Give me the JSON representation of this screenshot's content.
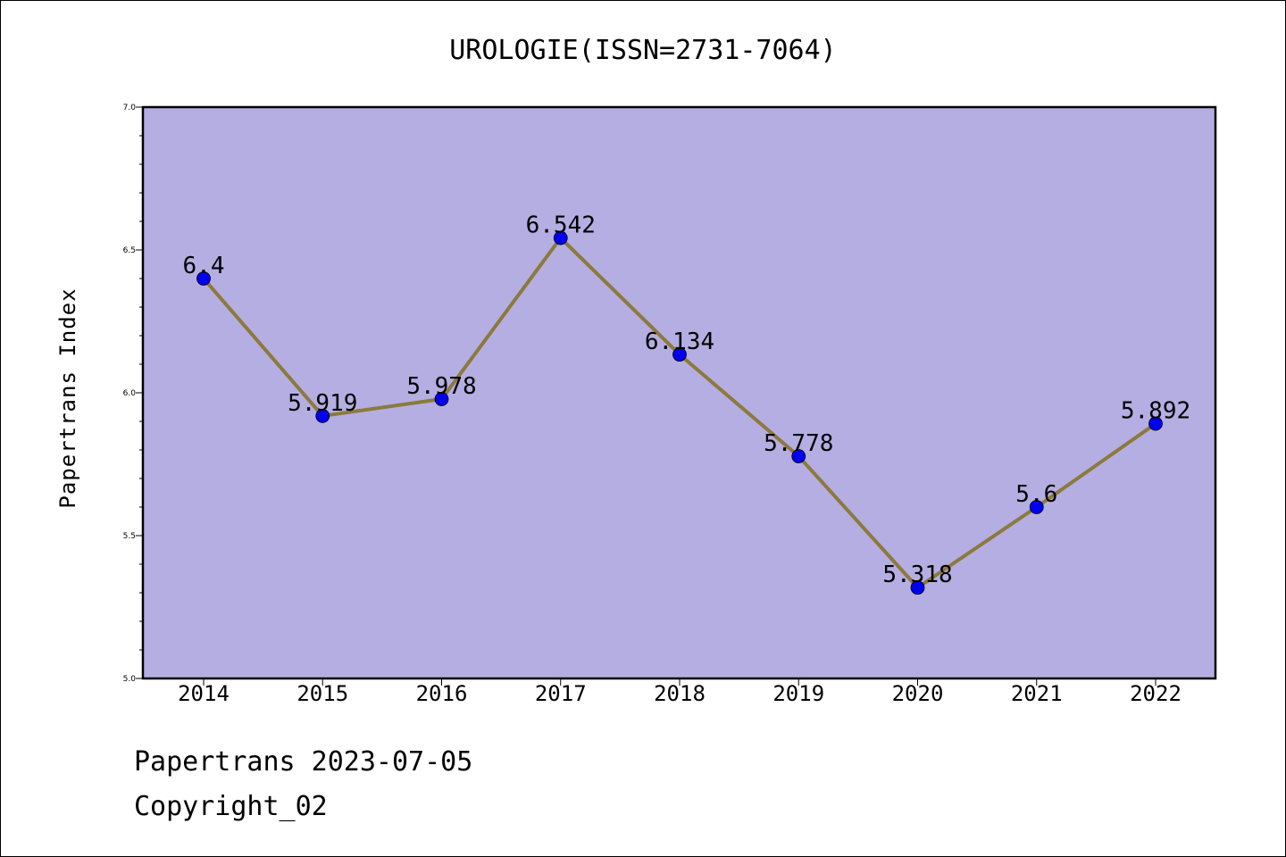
{
  "chart_data": {
    "type": "line",
    "title": "UROLOGIE(ISSN=2731-7064)",
    "xlabel": "",
    "ylabel": "Papertrans Index",
    "categories": [
      "2014",
      "2015",
      "2016",
      "2017",
      "2018",
      "2019",
      "2020",
      "2021",
      "2022"
    ],
    "series": [
      {
        "values": [
          6.4,
          5.919,
          5.978,
          6.542,
          6.134,
          5.778,
          5.318,
          5.6,
          5.892
        ],
        "data_labels": [
          "6.4",
          "5.919",
          "5.978",
          "6.542",
          "6.134",
          "5.778",
          "5.318",
          "5.6",
          "5.892"
        ]
      }
    ],
    "ylim": [
      5.0,
      7.0
    ],
    "yticks": [
      "5.0",
      "5.5",
      "6.0",
      "6.5",
      "7.0"
    ],
    "grid": false,
    "colors": {
      "plot_background": "#b5aee2",
      "line": "#8b7a3c",
      "marker": "#0000ee"
    }
  },
  "footer": {
    "line1": "Papertrans 2023-07-05",
    "line2": "Copyright_02"
  }
}
